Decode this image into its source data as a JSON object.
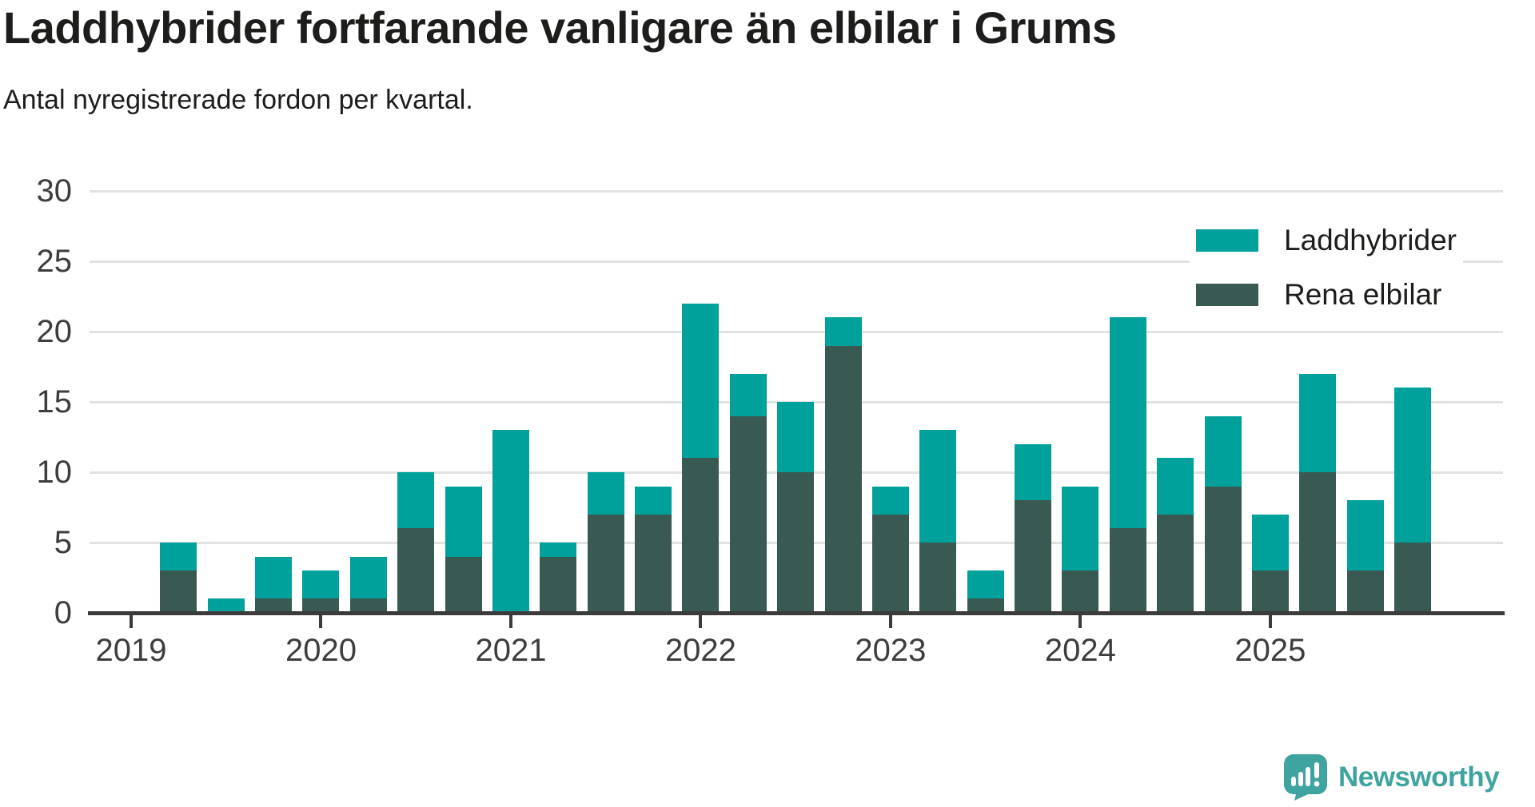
{
  "header": {
    "title": "Laddhybrider fortfarande vanligare än elbilar i Grums",
    "subtitle": "Antal nyregistrerade fordon per kvartal."
  },
  "legend": [
    {
      "label": "Laddhybrider",
      "color": "#00a19a"
    },
    {
      "label": "Rena elbilar",
      "color": "#395a52"
    }
  ],
  "y_axis": {
    "tick_labels": [
      "0",
      "5",
      "10",
      "15",
      "20",
      "25",
      "30"
    ],
    "max": 30
  },
  "x_axis": {
    "year_labels": [
      "2019",
      "2020",
      "2021",
      "2022",
      "2023",
      "2024",
      "2025"
    ]
  },
  "chart_data": {
    "type": "bar",
    "stacked": true,
    "title": "Laddhybrider fortfarande vanligare än elbilar i Grums",
    "subtitle": "Antal nyregistrerade fordon per kvartal.",
    "xlabel": "",
    "ylabel": "",
    "ylim": [
      0,
      30
    ],
    "grid": "horizontal",
    "legend_position": "top-right",
    "categories": [
      "2019 K2",
      "2019 K3",
      "2019 K4",
      "2020 K1",
      "2020 K2",
      "2020 K3",
      "2020 K4",
      "2021 K1",
      "2021 K2",
      "2021 K3",
      "2021 K4",
      "2022 K1",
      "2022 K2",
      "2022 K3",
      "2022 K4",
      "2023 K1",
      "2023 K2",
      "2023 K3",
      "2023 K4",
      "2024 K1",
      "2024 K2",
      "2024 K3",
      "2024 K4",
      "2025 K1",
      "2025 K2",
      "2025 K3",
      "2025 K4"
    ],
    "series": [
      {
        "name": "Rena elbilar",
        "color": "#395a52",
        "stack_position": "bottom",
        "values": [
          3,
          0,
          1,
          1,
          1,
          6,
          4,
          0,
          4,
          7,
          7,
          11,
          14,
          10,
          19,
          7,
          5,
          1,
          8,
          3,
          6,
          7,
          9,
          3,
          10,
          3,
          5
        ]
      },
      {
        "name": "Laddhybrider",
        "color": "#00a19a",
        "stack_position": "top",
        "values": [
          2,
          1,
          3,
          2,
          3,
          4,
          5,
          13,
          1,
          3,
          2,
          11,
          3,
          5,
          2,
          2,
          8,
          2,
          4,
          6,
          15,
          4,
          5,
          4,
          7,
          5,
          11
        ]
      }
    ],
    "totals": [
      5,
      1,
      4,
      3,
      4,
      10,
      9,
      13,
      5,
      10,
      9,
      22,
      17,
      15,
      21,
      9,
      13,
      3,
      12,
      9,
      21,
      11,
      14,
      7,
      17,
      8,
      16
    ]
  },
  "footer": {
    "brand": "Newsworthy"
  },
  "colors": {
    "background": "#ffffff",
    "gridline": "#e2e2e2",
    "axis": "#3b3b3b",
    "axis_text": "#3d3d3d",
    "text": "#1d1d1b",
    "brand": "#3fa3a0"
  }
}
